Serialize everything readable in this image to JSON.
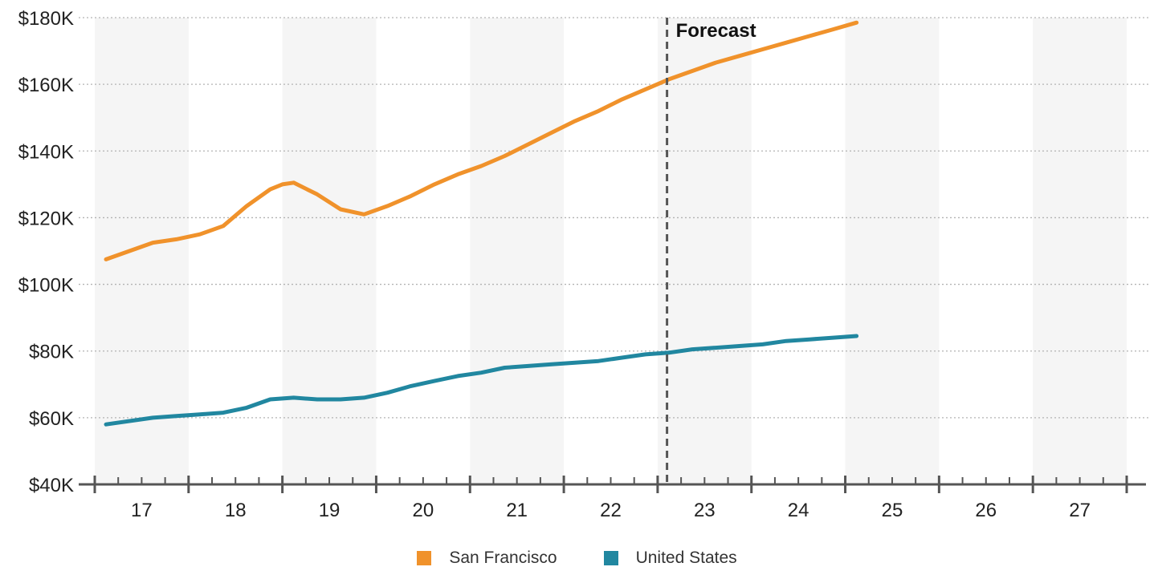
{
  "chart_data": {
    "type": "line",
    "x_tick_labels": [
      "17",
      "18",
      "19",
      "20",
      "21",
      "22",
      "23",
      "24",
      "25",
      "26",
      "27"
    ],
    "y_tick_labels": [
      "$40K",
      "$60K",
      "$80K",
      "$100K",
      "$120K",
      "$140K",
      "$160K",
      "$180K"
    ],
    "y_ticks": [
      40000,
      60000,
      80000,
      100000,
      120000,
      140000,
      160000,
      180000
    ],
    "ylim": [
      40000,
      180000
    ],
    "xlim": [
      17,
      28
    ],
    "grid": "horizontal dotted",
    "legend_position": "bottom-center",
    "annotation": {
      "label": "Forecast",
      "x": 23.1
    },
    "series": [
      {
        "name": "San Francisco",
        "color": "#F0922B",
        "points": [
          [
            17.12,
            107500
          ],
          [
            17.62,
            112500
          ],
          [
            17.87,
            113500
          ],
          [
            18.12,
            115000
          ],
          [
            18.37,
            117500
          ],
          [
            18.62,
            123500
          ],
          [
            18.87,
            128500
          ],
          [
            19.0,
            130000
          ],
          [
            19.12,
            130500
          ],
          [
            19.37,
            127000
          ],
          [
            19.62,
            122500
          ],
          [
            19.87,
            121000
          ],
          [
            20.12,
            123500
          ],
          [
            20.37,
            126500
          ],
          [
            20.62,
            130000
          ],
          [
            20.87,
            133000
          ],
          [
            21.12,
            135500
          ],
          [
            21.37,
            138500
          ],
          [
            21.62,
            142000
          ],
          [
            21.87,
            145500
          ],
          [
            22.12,
            149000
          ],
          [
            22.37,
            152000
          ],
          [
            22.62,
            155500
          ],
          [
            22.87,
            158500
          ],
          [
            23.12,
            161500
          ],
          [
            23.37,
            164000
          ],
          [
            23.62,
            166500
          ],
          [
            23.87,
            168500
          ],
          [
            24.12,
            170500
          ],
          [
            24.37,
            172500
          ],
          [
            24.62,
            174500
          ],
          [
            24.87,
            176500
          ],
          [
            25.12,
            178500
          ]
        ]
      },
      {
        "name": "United States",
        "color": "#2187A0",
        "points": [
          [
            17.12,
            58000
          ],
          [
            17.62,
            60000
          ],
          [
            17.87,
            60500
          ],
          [
            18.12,
            61000
          ],
          [
            18.37,
            61500
          ],
          [
            18.62,
            63000
          ],
          [
            18.87,
            65500
          ],
          [
            19.12,
            66000
          ],
          [
            19.37,
            65500
          ],
          [
            19.62,
            65500
          ],
          [
            19.87,
            66000
          ],
          [
            20.12,
            67500
          ],
          [
            20.37,
            69500
          ],
          [
            20.62,
            71000
          ],
          [
            20.87,
            72500
          ],
          [
            21.12,
            73500
          ],
          [
            21.37,
            75000
          ],
          [
            21.62,
            75500
          ],
          [
            21.87,
            76000
          ],
          [
            22.12,
            76500
          ],
          [
            22.37,
            77000
          ],
          [
            22.62,
            78000
          ],
          [
            22.87,
            79000
          ],
          [
            23.12,
            79500
          ],
          [
            23.37,
            80500
          ],
          [
            23.62,
            81000
          ],
          [
            23.87,
            81500
          ],
          [
            24.12,
            82000
          ],
          [
            24.37,
            83000
          ],
          [
            24.62,
            83500
          ],
          [
            24.87,
            84000
          ],
          [
            25.12,
            84500
          ]
        ]
      }
    ]
  }
}
